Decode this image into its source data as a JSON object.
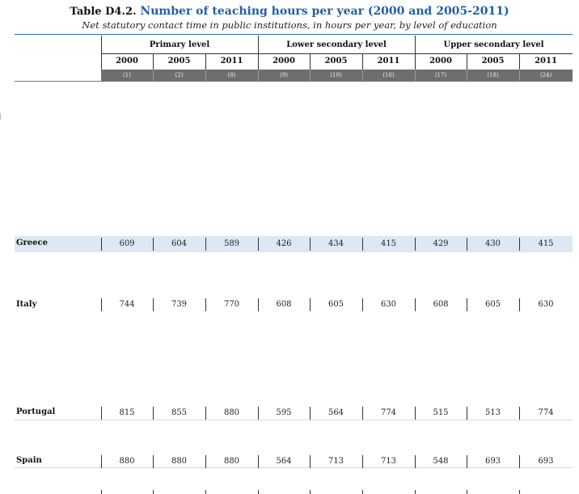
{
  "header": {
    "table_number": "Table D4.2.",
    "title": "Number of teaching hours per year (2000 and 2005-2011)",
    "subtitle": "Net statutory contact time in public institutions, in hours per year, by level of education"
  },
  "levels": [
    "Primary level",
    "Lower secondary level",
    "Upper secondary level"
  ],
  "years": [
    "2000",
    "2005",
    "2011",
    "2000",
    "2005",
    "2011",
    "2000",
    "2005",
    "2011"
  ],
  "column_numbers": [
    "(1)",
    "(2)",
    "(8)",
    "(9)",
    "(10)",
    "(16)",
    "(17)",
    "(18)",
    "(24)"
  ],
  "rows": [
    {
      "country": "Greece",
      "values": [
        "609",
        "604",
        "589",
        "426",
        "434",
        "415",
        "429",
        "430",
        "415"
      ]
    },
    {
      "country": "Italy",
      "values": [
        "744",
        "739",
        "770",
        "608",
        "605",
        "630",
        "608",
        "605",
        "630"
      ]
    },
    {
      "country": "Portugal",
      "values": [
        "815",
        "855",
        "880",
        "595",
        "564",
        "774",
        "515",
        "513",
        "774"
      ]
    },
    {
      "country": "Spain",
      "values": [
        "880",
        "880",
        "880",
        "564",
        "713",
        "713",
        "548",
        "693",
        "693"
      ]
    }
  ],
  "colors": {
    "title": "#1f5fa8",
    "rule": "#2d6db5",
    "highlight_row": "#dce8f3",
    "column_number_bar": "#6e6e6e"
  }
}
